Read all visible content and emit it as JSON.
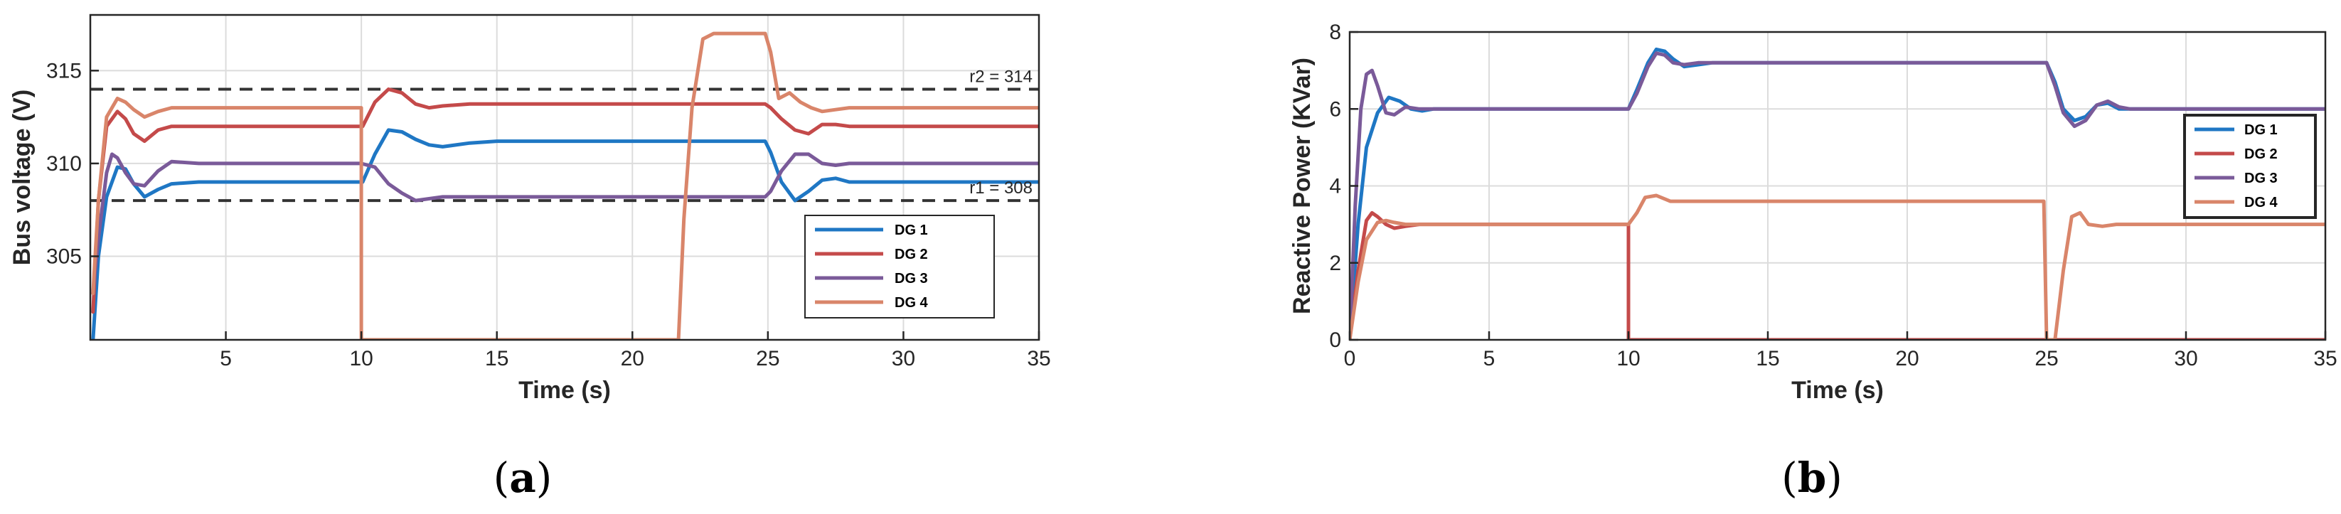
{
  "colors": {
    "DG 1": "#1f77c4",
    "DG 2": "#c44a4a",
    "DG 3": "#7a5a99",
    "DG 4": "#d9856a",
    "grid": "#dcdcdc",
    "ref_line": "#333333"
  },
  "chart_data": [
    {
      "type": "line",
      "panel_label": "a",
      "xlabel": "Time (s)",
      "ylabel": "Bus voltage (V)",
      "xlim": [
        0,
        35
      ],
      "ylim": [
        300.5,
        318
      ],
      "xticks": [
        5,
        10,
        15,
        20,
        25,
        30,
        35
      ],
      "yticks": [
        305,
        310,
        315
      ],
      "grid": true,
      "legend": {
        "placement": "lower-right",
        "entries": [
          "DG 1",
          "DG 2",
          "DG 3",
          "DG 4"
        ]
      },
      "annotations": [
        {
          "text": "r2 = 314",
          "x": 33.6,
          "y": 314
        },
        {
          "text": "r1 = 308",
          "x": 33.6,
          "y": 308
        }
      ],
      "reference_lines": [
        {
          "name": "r2",
          "y": 314
        },
        {
          "name": "r1",
          "y": 308
        }
      ],
      "series": [
        {
          "name": "DG 1",
          "x": [
            0.1,
            0.3,
            0.6,
            1.0,
            1.3,
            1.6,
            2.0,
            2.5,
            3.0,
            4.0,
            9.99,
            10.05,
            10.5,
            11.0,
            11.5,
            12.0,
            12.5,
            13.0,
            14.0,
            15.0,
            24.9,
            25.1,
            25.5,
            26.0,
            26.5,
            27.0,
            27.5,
            28.0,
            29.0,
            35.0
          ],
          "y": [
            300.5,
            305,
            308.2,
            309.8,
            309.7,
            308.9,
            308.2,
            308.6,
            308.9,
            309.0,
            309.0,
            309.0,
            310.5,
            311.8,
            311.7,
            311.3,
            311.0,
            310.9,
            311.1,
            311.2,
            311.2,
            310.6,
            309.0,
            308.0,
            308.5,
            309.1,
            309.2,
            309.0,
            309.0,
            309.0
          ]
        },
        {
          "name": "DG 2",
          "x": [
            0.1,
            0.3,
            0.6,
            1.0,
            1.3,
            1.6,
            2.0,
            2.5,
            3.0,
            4.0,
            9.99,
            10.05,
            10.5,
            11.0,
            11.5,
            12.0,
            12.5,
            13.0,
            14.0,
            15.0,
            24.9,
            25.1,
            25.5,
            26.0,
            26.5,
            27.0,
            27.5,
            28.0,
            29.0,
            35.0
          ],
          "y": [
            302,
            308,
            312,
            312.8,
            312.4,
            311.6,
            311.2,
            311.8,
            312.0,
            312.0,
            312.0,
            312.0,
            313.3,
            314.0,
            313.8,
            313.2,
            313.0,
            313.1,
            313.2,
            313.2,
            313.2,
            313.0,
            312.4,
            311.8,
            311.6,
            312.1,
            312.1,
            312.0,
            312.0,
            312.0
          ]
        },
        {
          "name": "DG 3",
          "x": [
            0.1,
            0.3,
            0.6,
            0.8,
            1.0,
            1.3,
            1.6,
            2.0,
            2.5,
            3.0,
            4.0,
            9.99,
            10.5,
            11.0,
            11.5,
            12.0,
            12.5,
            13.0,
            14.0,
            24.9,
            25.1,
            25.5,
            26.0,
            26.5,
            27.0,
            27.5,
            28.0,
            29.0,
            35.0
          ],
          "y": [
            303,
            306,
            309.5,
            310.5,
            310.3,
            309.5,
            308.9,
            308.8,
            309.6,
            310.1,
            310.0,
            310.0,
            309.8,
            308.9,
            308.4,
            308.0,
            308.1,
            308.2,
            308.2,
            308.2,
            308.5,
            309.6,
            310.5,
            310.5,
            310.0,
            309.9,
            310.0,
            310.0,
            310.0
          ]
        },
        {
          "name": "DG 4",
          "x": [
            0.1,
            0.3,
            0.6,
            1.0,
            1.3,
            1.6,
            2.0,
            2.5,
            3.0,
            4.0,
            9.99,
            10.0,
            10.0,
            21.7,
            21.9,
            22.2,
            22.6,
            23.0,
            24.9,
            25.1,
            25.4,
            25.8,
            26.2,
            26.6,
            27.0,
            27.5,
            28.0,
            29.0,
            35.0
          ],
          "y": [
            303,
            308,
            312.5,
            313.5,
            313.3,
            312.9,
            312.5,
            312.8,
            313.0,
            313.0,
            313.0,
            313.0,
            300.5,
            300.5,
            307,
            313,
            316.7,
            317,
            317,
            316.0,
            313.5,
            313.8,
            313.3,
            313.0,
            312.8,
            312.9,
            313.0,
            313.0,
            313.0
          ]
        }
      ]
    },
    {
      "type": "line",
      "panel_label": "b",
      "xlabel": "Time (s)",
      "ylabel": "Reactive Power (KVar)",
      "xlim": [
        0,
        35
      ],
      "ylim": [
        0,
        8
      ],
      "xticks": [
        0,
        5,
        10,
        15,
        20,
        25,
        30,
        35
      ],
      "yticks": [
        0,
        2,
        4,
        6,
        8
      ],
      "grid": true,
      "legend": {
        "placement": "right",
        "entries": [
          "DG 1",
          "DG 2",
          "DG 3",
          "DG 4"
        ]
      },
      "series": [
        {
          "name": "DG 1",
          "x": [
            0,
            0.3,
            0.6,
            1.0,
            1.4,
            1.8,
            2.2,
            2.6,
            3.0,
            10.0,
            10.3,
            10.7,
            11.0,
            11.3,
            11.6,
            12.0,
            12.5,
            13.0,
            14.0,
            25.0,
            25.3,
            25.6,
            26.0,
            26.4,
            26.8,
            27.2,
            27.6,
            28.0,
            35.0
          ],
          "y": [
            0,
            3,
            5,
            5.9,
            6.3,
            6.2,
            6.0,
            5.95,
            6.0,
            6.0,
            6.5,
            7.2,
            7.55,
            7.5,
            7.3,
            7.1,
            7.15,
            7.2,
            7.2,
            7.2,
            6.7,
            6.0,
            5.7,
            5.8,
            6.1,
            6.15,
            6.0,
            6.0,
            6.0
          ]
        },
        {
          "name": "DG 2",
          "x": [
            0,
            0.3,
            0.6,
            0.8,
            1.0,
            1.3,
            1.6,
            2.0,
            2.5,
            3.0,
            9.99,
            10.0,
            10.0,
            10.3,
            10.6,
            11.0,
            11.5,
            12.0,
            13.0,
            24.9,
            25.0,
            25.05,
            35.0
          ],
          "y": [
            0,
            1.8,
            3.1,
            3.3,
            3.2,
            3.0,
            2.9,
            2.95,
            3.0,
            3.0,
            3.0,
            3.0,
            0,
            0,
            0,
            0,
            0,
            0,
            0,
            0,
            0,
            0,
            0
          ]
        },
        {
          "name": "DG 3",
          "x": [
            0,
            0.2,
            0.4,
            0.6,
            0.8,
            1.0,
            1.3,
            1.6,
            2.0,
            2.5,
            3.0,
            10.0,
            10.3,
            10.7,
            11.0,
            11.3,
            11.6,
            12.0,
            12.5,
            13.0,
            14.0,
            25.0,
            25.3,
            25.6,
            26.0,
            26.4,
            26.8,
            27.2,
            27.6,
            28.0,
            35.0
          ],
          "y": [
            0,
            3.5,
            6,
            6.9,
            7.0,
            6.6,
            5.9,
            5.85,
            6.05,
            6.0,
            6.0,
            6.0,
            6.4,
            7.1,
            7.45,
            7.4,
            7.2,
            7.15,
            7.2,
            7.2,
            7.2,
            7.2,
            6.6,
            5.9,
            5.55,
            5.7,
            6.1,
            6.2,
            6.05,
            6.0,
            6.0
          ]
        },
        {
          "name": "DG 4",
          "x": [
            0,
            0.3,
            0.6,
            1.0,
            1.3,
            1.6,
            2.0,
            2.5,
            3.0,
            9.99,
            10.0,
            10.3,
            10.6,
            11.0,
            11.5,
            12.0,
            13.0,
            24.9,
            25.0,
            25.3,
            25.6,
            25.9,
            26.2,
            26.5,
            27.0,
            27.5,
            35.0
          ],
          "y": [
            0,
            1.5,
            2.6,
            3.05,
            3.1,
            3.05,
            3.0,
            3.0,
            3.0,
            3.0,
            3.0,
            3.3,
            3.7,
            3.75,
            3.6,
            3.6,
            3.6,
            3.6,
            0,
            0,
            1.8,
            3.2,
            3.3,
            3.0,
            2.95,
            3.0,
            3.0
          ]
        }
      ]
    }
  ]
}
